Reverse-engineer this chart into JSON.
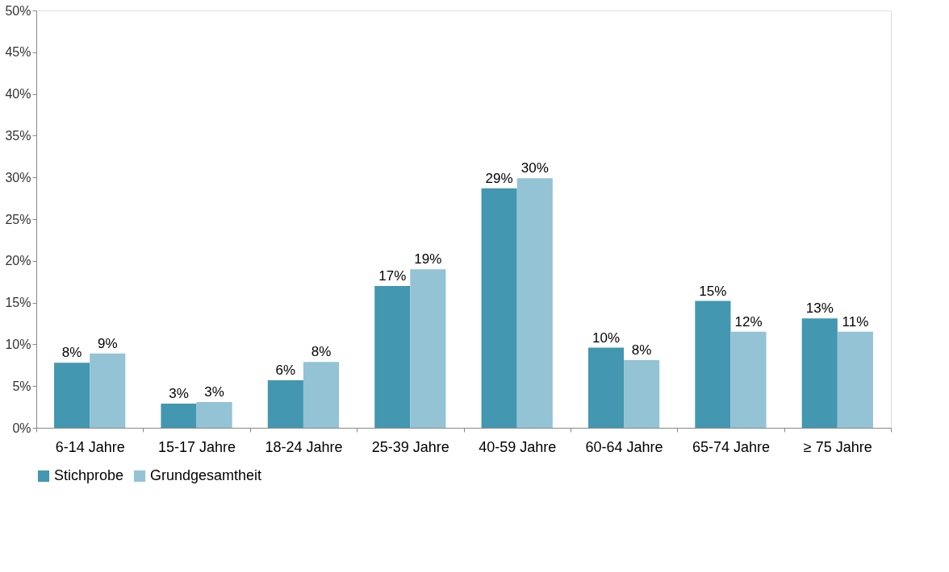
{
  "chart_data": {
    "type": "bar",
    "categories": [
      "6-14 Jahre",
      "15-17 Jahre",
      "18-24 Jahre",
      "25-39 Jahre",
      "40-59 Jahre",
      "60-64 Jahre",
      "65-74 Jahre",
      "≥ 75 Jahre"
    ],
    "series": [
      {
        "name": "Stichprobe",
        "color": "#4397b0",
        "values": [
          7.8,
          2.9,
          5.7,
          17,
          28.7,
          9.6,
          15.2,
          13.1
        ],
        "value_labels": [
          "8%",
          "3%",
          "6%",
          "17%",
          "29%",
          "10%",
          "15%",
          "13%"
        ]
      },
      {
        "name": "Grundgesamtheit",
        "color": "#93c3d5",
        "values": [
          8.9,
          3.1,
          7.9,
          19,
          29.9,
          8.1,
          11.5,
          11.5
        ],
        "value_labels": [
          "9%",
          "3%",
          "8%",
          "19%",
          "30%",
          "8%",
          "12%",
          "11%"
        ]
      }
    ],
    "ylim": [
      0,
      50
    ],
    "yticks": [
      {
        "value": 0,
        "label": "0%"
      },
      {
        "value": 5,
        "label": "5%"
      },
      {
        "value": 10,
        "label": "10%"
      },
      {
        "value": 15,
        "label": "15%"
      },
      {
        "value": 20,
        "label": "20%"
      },
      {
        "value": 25,
        "label": "25%"
      },
      {
        "value": 30,
        "label": "30%"
      },
      {
        "value": 35,
        "label": "35%"
      },
      {
        "value": 40,
        "label": "40%"
      },
      {
        "value": 45,
        "label": "45%"
      },
      {
        "value": 50,
        "label": "50%"
      }
    ],
    "grid": false,
    "legend": "bottom"
  }
}
